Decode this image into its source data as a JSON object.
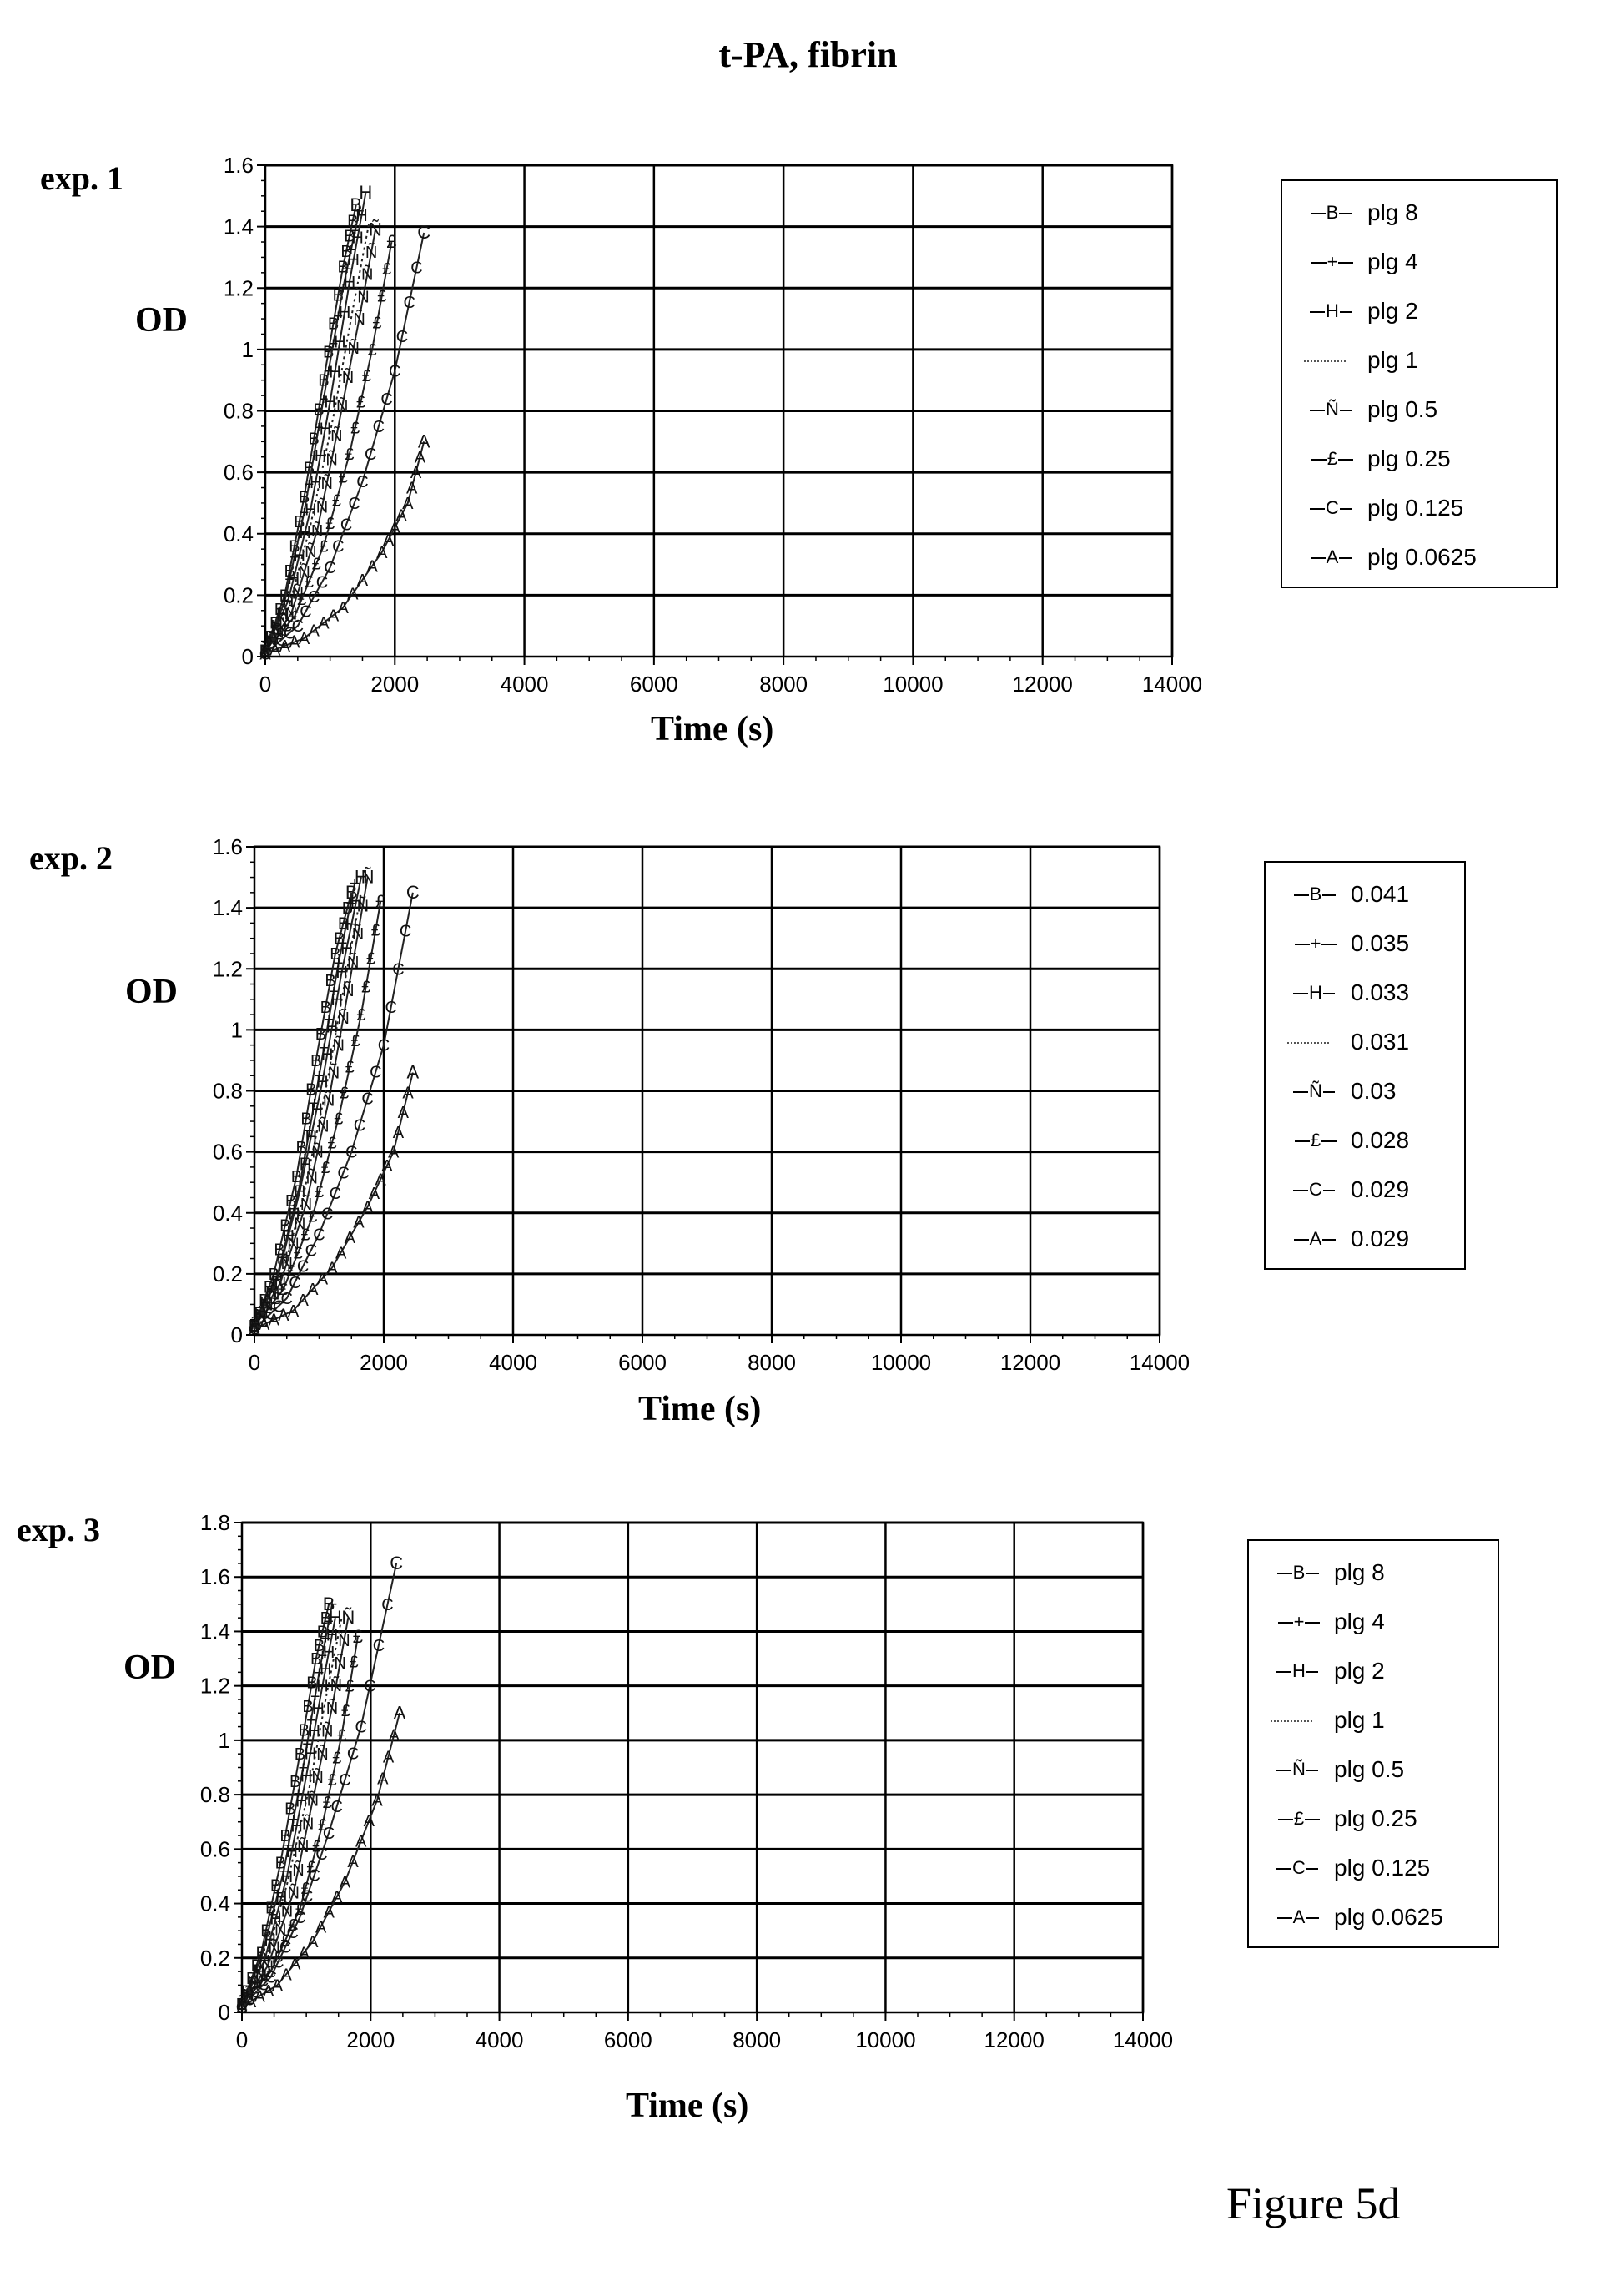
{
  "page_title": "t-PA, fibrin",
  "figure_caption": "Figure 5d",
  "chart_data": [
    {
      "type": "scatter",
      "panel_label": "exp. 1",
      "ylabel": "OD",
      "xlabel": "Time (s)",
      "xlim": [
        0,
        14000
      ],
      "ylim": [
        0,
        1.6
      ],
      "x_ticks": [
        0,
        2000,
        4000,
        6000,
        8000,
        10000,
        12000,
        14000
      ],
      "y_ticks": [
        0,
        0.2,
        0.4,
        0.6,
        0.8,
        1,
        1.2,
        1.4,
        1.6
      ],
      "x_tick_labels": [
        "0",
        "2000",
        "4000",
        "6000",
        "8000",
        "10000",
        "12000",
        "14000"
      ],
      "y_tick_labels": [
        "0",
        "0.2",
        "0.4",
        "0.6",
        "0.8",
        "1",
        "1.2",
        "1.4",
        "1.6"
      ],
      "grid": true,
      "legend_position": "right",
      "series": [
        {
          "name": "plg 8",
          "marker": "B",
          "x": [
            0,
            300,
            600,
            900,
            1200,
            1400
          ],
          "y": [
            0.02,
            0.2,
            0.52,
            0.9,
            1.27,
            1.47
          ]
        },
        {
          "name": "plg 4",
          "marker": "+",
          "x": [
            0,
            300,
            600,
            900,
            1200,
            1450
          ],
          "y": [
            0.02,
            0.18,
            0.47,
            0.84,
            1.2,
            1.45
          ]
        },
        {
          "name": "plg 2",
          "marker": "H",
          "x": [
            0,
            350,
            700,
            1000,
            1300,
            1550
          ],
          "y": [
            0.02,
            0.18,
            0.48,
            0.83,
            1.22,
            1.51
          ]
        },
        {
          "name": "plg 1",
          "marker": "",
          "x": [
            0,
            350,
            700,
            1050,
            1350,
            1600
          ],
          "y": [
            0.02,
            0.15,
            0.43,
            0.78,
            1.13,
            1.41
          ]
        },
        {
          "name": "plg 0.5",
          "marker": "Ñ",
          "x": [
            0,
            400,
            800,
            1100,
            1450,
            1700
          ],
          "y": [
            0.02,
            0.14,
            0.41,
            0.72,
            1.1,
            1.39
          ]
        },
        {
          "name": "plg 0.25",
          "marker": "£",
          "x": [
            0,
            450,
            900,
            1300,
            1650,
            1950
          ],
          "y": [
            0.02,
            0.13,
            0.36,
            0.66,
            1.0,
            1.35
          ]
        },
        {
          "name": "plg 0.125",
          "marker": "C",
          "x": [
            0,
            500,
            1000,
            1500,
            2000,
            2450
          ],
          "y": [
            0.01,
            0.1,
            0.29,
            0.57,
            0.93,
            1.38
          ]
        },
        {
          "name": "plg 0.0625",
          "marker": "A",
          "x": [
            0,
            600,
            1200,
            1800,
            2200,
            2450
          ],
          "y": [
            0.01,
            0.06,
            0.16,
            0.34,
            0.5,
            0.7
          ]
        }
      ]
    },
    {
      "type": "scatter",
      "panel_label": "exp. 2",
      "ylabel": "OD",
      "xlabel": "Time (s)",
      "xlim": [
        0,
        14000
      ],
      "ylim": [
        0,
        1.6
      ],
      "x_ticks": [
        0,
        2000,
        4000,
        6000,
        8000,
        10000,
        12000,
        14000
      ],
      "y_ticks": [
        0,
        0.2,
        0.4,
        0.6,
        0.8,
        1,
        1.2,
        1.4,
        1.6
      ],
      "x_tick_labels": [
        "0",
        "2000",
        "4000",
        "6000",
        "8000",
        "10000",
        "12000",
        "14000"
      ],
      "y_tick_labels": [
        "0",
        "0.2",
        "0.4",
        "0.6",
        "0.8",
        "1",
        "1.2",
        "1.4",
        "1.6"
      ],
      "grid": true,
      "legend_position": "right",
      "series": [
        {
          "name": "0.041",
          "marker": "B",
          "x": [
            0,
            300,
            650,
            950,
            1250,
            1500
          ],
          "y": [
            0.03,
            0.2,
            0.52,
            0.9,
            1.25,
            1.45
          ]
        },
        {
          "name": "0.035",
          "marker": "+",
          "x": [
            0,
            350,
            700,
            1000,
            1300,
            1550
          ],
          "y": [
            0.03,
            0.19,
            0.49,
            0.85,
            1.22,
            1.48
          ]
        },
        {
          "name": "0.033",
          "marker": "H",
          "x": [
            0,
            350,
            700,
            1050,
            1350,
            1650
          ],
          "y": [
            0.03,
            0.18,
            0.47,
            0.83,
            1.19,
            1.5
          ]
        },
        {
          "name": "0.031",
          "marker": "",
          "x": [
            0,
            400,
            750,
            1100,
            1400,
            1650
          ],
          "y": [
            0.03,
            0.17,
            0.45,
            0.8,
            1.16,
            1.45
          ]
        },
        {
          "name": "0.03",
          "marker": "Ñ",
          "x": [
            0,
            400,
            800,
            1150,
            1450,
            1750
          ],
          "y": [
            0.03,
            0.17,
            0.43,
            0.77,
            1.13,
            1.5
          ]
        },
        {
          "name": "0.028",
          "marker": "£",
          "x": [
            0,
            450,
            900,
            1300,
            1650,
            1950
          ],
          "y": [
            0.03,
            0.15,
            0.39,
            0.71,
            1.05,
            1.42
          ]
        },
        {
          "name": "0.029",
          "marker": "C",
          "x": [
            0,
            500,
            1000,
            1500,
            2000,
            2450
          ],
          "y": [
            0.02,
            0.12,
            0.33,
            0.6,
            0.95,
            1.45
          ]
        },
        {
          "name": "0.029",
          "marker": "A",
          "x": [
            0,
            600,
            1200,
            1750,
            2150,
            2450
          ],
          "y": [
            0.02,
            0.08,
            0.22,
            0.42,
            0.6,
            0.86
          ]
        }
      ]
    },
    {
      "type": "scatter",
      "panel_label": "exp. 3",
      "ylabel": "OD",
      "xlabel": "Time (s)",
      "xlim": [
        0,
        14000
      ],
      "ylim": [
        0,
        1.8
      ],
      "x_ticks": [
        0,
        2000,
        4000,
        6000,
        8000,
        10000,
        12000,
        14000
      ],
      "y_ticks": [
        0,
        0.2,
        0.4,
        0.6,
        0.8,
        1,
        1.2,
        1.4,
        1.6,
        1.8
      ],
      "x_tick_labels": [
        "0",
        "2000",
        "4000",
        "6000",
        "8000",
        "10000",
        "12000",
        "14000"
      ],
      "y_tick_labels": [
        "0",
        "0.2",
        "0.4",
        "0.6",
        "0.8",
        "1",
        "1.2",
        "1.4",
        "1.6",
        "1.8"
      ],
      "grid": true,
      "legend_position": "right",
      "series": [
        {
          "name": "plg 8",
          "marker": "B",
          "x": [
            0,
            300,
            600,
            900,
            1150,
            1350
          ],
          "y": [
            0.03,
            0.22,
            0.55,
            0.95,
            1.3,
            1.5
          ]
        },
        {
          "name": "plg 4",
          "marker": "+",
          "x": [
            0,
            300,
            650,
            950,
            1200,
            1400
          ],
          "y": [
            0.03,
            0.2,
            0.52,
            0.9,
            1.25,
            1.5
          ]
        },
        {
          "name": "plg 2",
          "marker": "H",
          "x": [
            0,
            350,
            700,
            1000,
            1250,
            1450
          ],
          "y": [
            0.03,
            0.19,
            0.5,
            0.87,
            1.2,
            1.45
          ]
        },
        {
          "name": "plg 1",
          "marker": "",
          "x": [
            0,
            350,
            700,
            1050,
            1300,
            1550
          ],
          "y": [
            0.03,
            0.18,
            0.47,
            0.83,
            1.15,
            1.45
          ]
        },
        {
          "name": "plg 0.5",
          "marker": "Ñ",
          "x": [
            0,
            400,
            800,
            1100,
            1400,
            1650
          ],
          "y": [
            0.03,
            0.17,
            0.44,
            0.78,
            1.12,
            1.45
          ]
        },
        {
          "name": "plg 0.25",
          "marker": "£",
          "x": [
            0,
            450,
            900,
            1250,
            1550,
            1800
          ],
          "y": [
            0.03,
            0.15,
            0.38,
            0.69,
            1.02,
            1.38
          ]
        },
        {
          "name": "plg 0.125",
          "marker": "C",
          "x": [
            0,
            450,
            900,
            1350,
            1850,
            2400
          ],
          "y": [
            0.02,
            0.13,
            0.35,
            0.66,
            1.05,
            1.65
          ]
        },
        {
          "name": "plg 0.0625",
          "marker": "A",
          "x": [
            0,
            550,
            1100,
            1600,
            2100,
            2450
          ],
          "y": [
            0.02,
            0.1,
            0.26,
            0.48,
            0.78,
            1.1
          ]
        }
      ]
    }
  ]
}
